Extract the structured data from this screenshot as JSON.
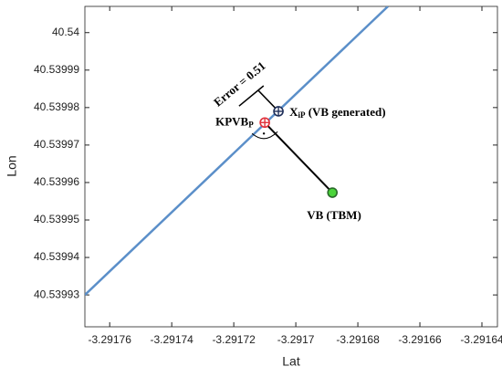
{
  "chart_data": {
    "type": "line",
    "xlabel": "Lat",
    "ylabel": "Lon",
    "xlim": [
      -3.291768,
      -3.291635
    ],
    "ylim": [
      40.5399215,
      40.540007
    ],
    "xticks": [
      -3.29176,
      -3.29174,
      -3.29172,
      -3.2917,
      -3.29168,
      -3.29166,
      -3.29164
    ],
    "yticks": [
      40.53993,
      40.53994,
      40.53995,
      40.53996,
      40.53997,
      40.53998,
      40.53999,
      40.54
    ],
    "series": [
      {
        "color": "#5b8fc9",
        "x": [
          -3.291768,
          -3.2916703
        ],
        "values": [
          40.53993,
          40.540007
        ]
      }
    ],
    "points": [
      {
        "label": "KPVB",
        "sub": "P",
        "x": -3.29171,
        "y": 40.539976,
        "color": "#e0303a"
      },
      {
        "label": "X",
        "sub": "iP",
        "rest": " (VB generated)",
        "x": -3.2917056,
        "y": 40.539979,
        "color": "#1f2f5a"
      },
      {
        "label": "VB (TBM)",
        "x": -3.2916882,
        "y": 40.5399573,
        "color": "#4ad43a"
      }
    ],
    "error_label": "Error = 0.51"
  }
}
